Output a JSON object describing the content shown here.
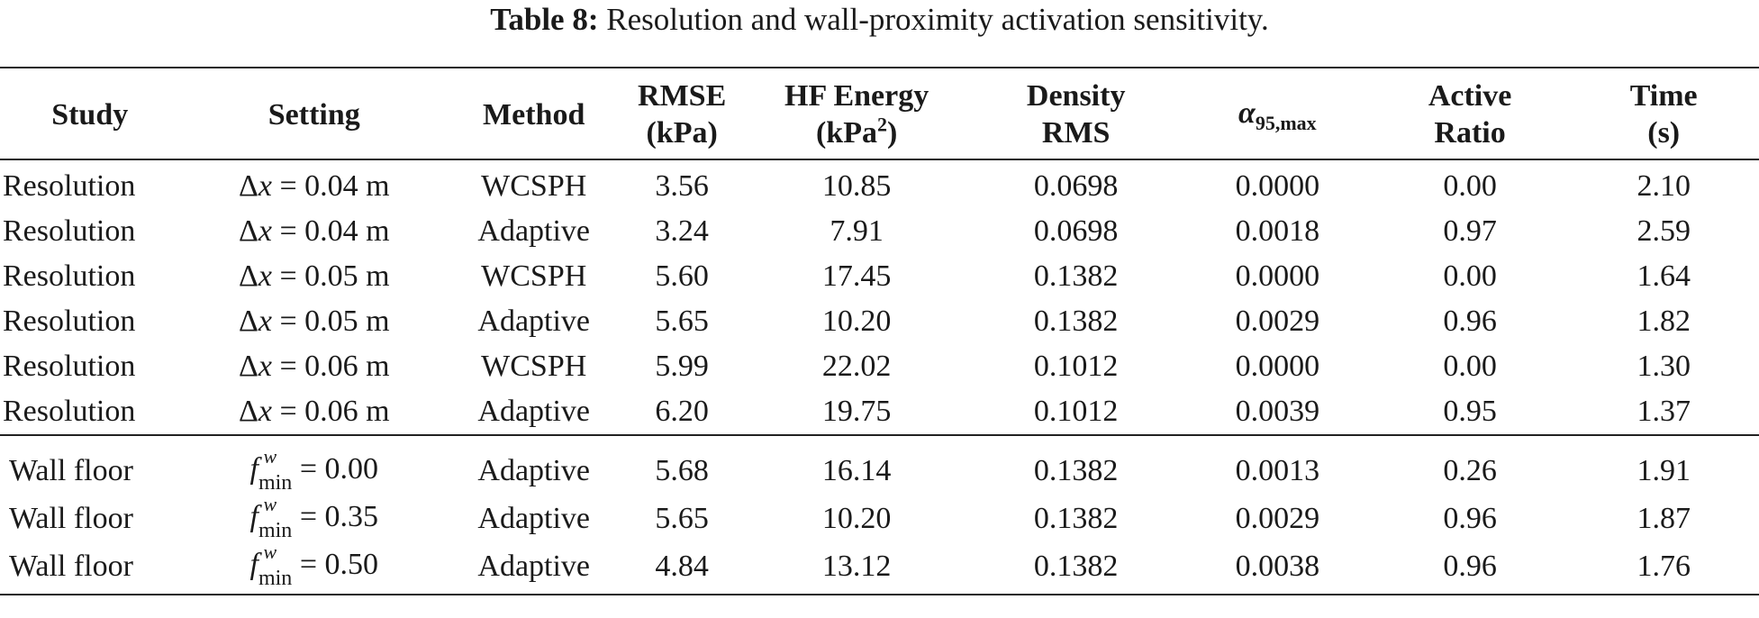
{
  "caption": {
    "label": "Table 8:",
    "text": "Resolution and wall-proximity activation sensitivity."
  },
  "header": {
    "study": "Study",
    "setting": "Setting",
    "method": "Method",
    "rmse_line1": "RMSE",
    "rmse_line2": "(kPa)",
    "hf_line1": "HF Energy",
    "hf_line2_pre": "(kPa",
    "hf_line2_sup": "2",
    "hf_line2_post": ")",
    "density_line1": "Density",
    "density_line2": "RMS",
    "alpha_symbol": "α",
    "alpha_sub": "95,max",
    "ratio_line1": "Active",
    "ratio_line2": "Ratio",
    "time_line1": "Time",
    "time_line2": "(s)"
  },
  "resolution_rows": [
    {
      "study": "Resolution",
      "setting_pre": "Δ",
      "setting_var": "x",
      "setting_post": " = 0.04 m",
      "method": "WCSPH",
      "rmse": "3.56",
      "hf": "10.85",
      "density": "0.0698",
      "alpha": "0.0000",
      "ratio": "0.00",
      "time": "2.10"
    },
    {
      "study": "Resolution",
      "setting_pre": "Δ",
      "setting_var": "x",
      "setting_post": " = 0.04 m",
      "method": "Adaptive",
      "rmse": "3.24",
      "hf": "7.91",
      "density": "0.0698",
      "alpha": "0.0018",
      "ratio": "0.97",
      "time": "2.59"
    },
    {
      "study": "Resolution",
      "setting_pre": "Δ",
      "setting_var": "x",
      "setting_post": " = 0.05 m",
      "method": "WCSPH",
      "rmse": "5.60",
      "hf": "17.45",
      "density": "0.1382",
      "alpha": "0.0000",
      "ratio": "0.00",
      "time": "1.64"
    },
    {
      "study": "Resolution",
      "setting_pre": "Δ",
      "setting_var": "x",
      "setting_post": " = 0.05 m",
      "method": "Adaptive",
      "rmse": "5.65",
      "hf": "10.20",
      "density": "0.1382",
      "alpha": "0.0029",
      "ratio": "0.96",
      "time": "1.82"
    },
    {
      "study": "Resolution",
      "setting_pre": "Δ",
      "setting_var": "x",
      "setting_post": " = 0.06 m",
      "method": "WCSPH",
      "rmse": "5.99",
      "hf": "22.02",
      "density": "0.1012",
      "alpha": "0.0000",
      "ratio": "0.00",
      "time": "1.30"
    },
    {
      "study": "Resolution",
      "setting_pre": "Δ",
      "setting_var": "x",
      "setting_post": " = 0.06 m",
      "method": "Adaptive",
      "rmse": "6.20",
      "hf": "19.75",
      "density": "0.1012",
      "alpha": "0.0039",
      "ratio": "0.95",
      "time": "1.37"
    }
  ],
  "wall_rows": [
    {
      "study": "Wall floor",
      "setting_f": "f",
      "setting_w": "w",
      "setting_min": "min",
      "setting_post": " = 0.00",
      "method": "Adaptive",
      "rmse": "5.68",
      "hf": "16.14",
      "density": "0.1382",
      "alpha": "0.0013",
      "ratio": "0.26",
      "time": "1.91"
    },
    {
      "study": "Wall floor",
      "setting_f": "f",
      "setting_w": "w",
      "setting_min": "min",
      "setting_post": " = 0.35",
      "method": "Adaptive",
      "rmse": "5.65",
      "hf": "10.20",
      "density": "0.1382",
      "alpha": "0.0029",
      "ratio": "0.96",
      "time": "1.87"
    },
    {
      "study": "Wall floor",
      "setting_f": "f",
      "setting_w": "w",
      "setting_min": "min",
      "setting_post": " = 0.50",
      "method": "Adaptive",
      "rmse": "4.84",
      "hf": "13.12",
      "density": "0.1382",
      "alpha": "0.0038",
      "ratio": "0.96",
      "time": "1.76"
    }
  ]
}
